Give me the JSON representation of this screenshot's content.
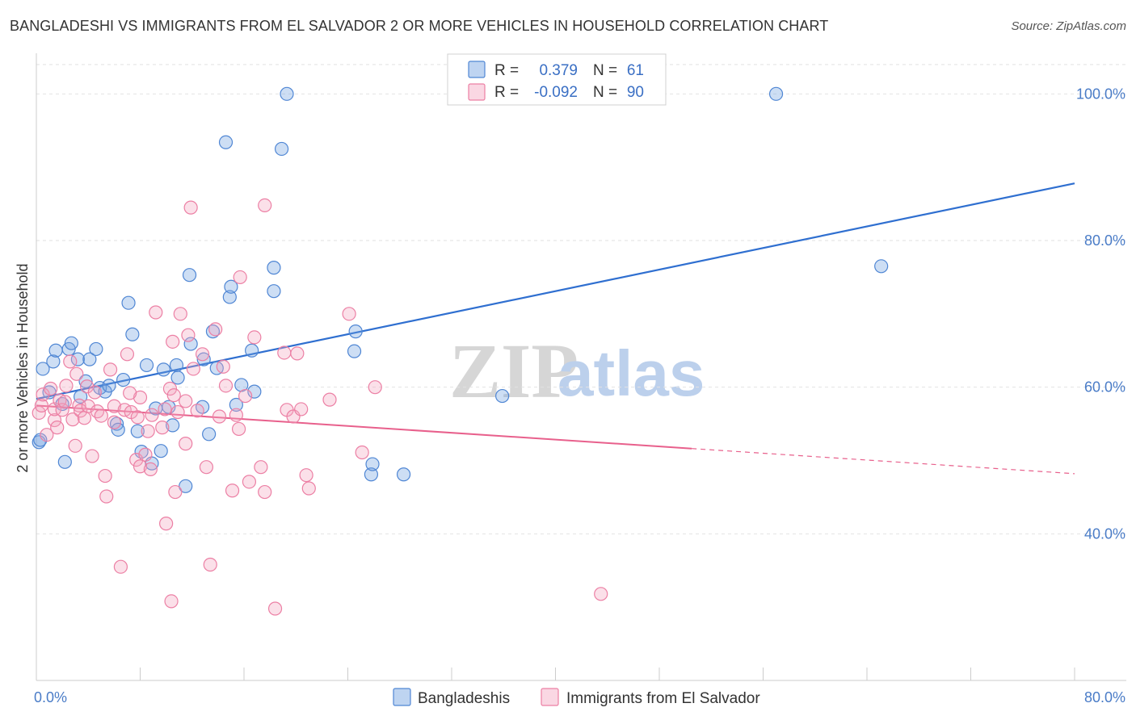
{
  "header": {
    "title": "BANGLADESHI VS IMMIGRANTS FROM EL SALVADOR 2 OR MORE VEHICLES IN HOUSEHOLD CORRELATION CHART",
    "source": "Source: ZipAtlas.com"
  },
  "watermark": {
    "zip": "ZIP",
    "atlas": "atlas"
  },
  "legend": {
    "r_label": "R =",
    "n_label": "N =",
    "entries": [
      {
        "r": "0.379",
        "n": "61",
        "color": "#6fa0e0"
      },
      {
        "r": "-0.092",
        "n": "90",
        "color": "#ef8fb0"
      }
    ]
  },
  "chart_data": {
    "type": "scatter",
    "xlabel": "",
    "ylabel": "2 or more Vehicles in Household",
    "xlim": [
      0,
      80
    ],
    "ylim": [
      20,
      104
    ],
    "x_tick_labels": [
      {
        "value": 0,
        "label": "0.0%"
      },
      {
        "value": 80,
        "label": "80.0%"
      }
    ],
    "y_tick_labels": [
      {
        "value": 40,
        "label": "40.0%"
      },
      {
        "value": 60,
        "label": "60.0%"
      },
      {
        "value": 80,
        "label": "80.0%"
      },
      {
        "value": 100,
        "label": "100.0%"
      }
    ],
    "x_minor_ticks": [
      0,
      8,
      16,
      24,
      32,
      40,
      48,
      56,
      64,
      72,
      80
    ],
    "grid": true,
    "legend_placement": "top-center and bottom",
    "series": [
      {
        "name": "Bangladeshis",
        "color": "#6fa0e0",
        "stroke": "#4f86d4",
        "trend": {
          "x0": 0,
          "y0": 58.4,
          "x1": 80,
          "y1": 87.8,
          "color": "#2f6fd0",
          "dashed_from": null
        },
        "points": [
          [
            0.2,
            52.5
          ],
          [
            0.5,
            62.5
          ],
          [
            1.0,
            59.3
          ],
          [
            1.3,
            63.5
          ],
          [
            1.5,
            65.0
          ],
          [
            2.0,
            57.7
          ],
          [
            2.2,
            49.8
          ],
          [
            2.5,
            65.2
          ],
          [
            2.7,
            66.0
          ],
          [
            3.2,
            63.8
          ],
          [
            3.4,
            58.7
          ],
          [
            3.8,
            60.8
          ],
          [
            4.1,
            63.8
          ],
          [
            4.6,
            65.2
          ],
          [
            4.9,
            59.9
          ],
          [
            5.3,
            59.4
          ],
          [
            5.6,
            60.2
          ],
          [
            6.2,
            55.0
          ],
          [
            6.3,
            54.2
          ],
          [
            6.7,
            61.0
          ],
          [
            7.1,
            71.5
          ],
          [
            7.4,
            67.2
          ],
          [
            7.8,
            54.0
          ],
          [
            8.1,
            51.2
          ],
          [
            8.5,
            63.0
          ],
          [
            8.9,
            49.6
          ],
          [
            9.2,
            57.1
          ],
          [
            9.6,
            51.3
          ],
          [
            9.8,
            62.4
          ],
          [
            10.2,
            57.3
          ],
          [
            10.5,
            54.8
          ],
          [
            10.8,
            63.0
          ],
          [
            10.9,
            61.3
          ],
          [
            11.5,
            46.5
          ],
          [
            11.9,
            65.9
          ],
          [
            11.8,
            75.3
          ],
          [
            12.8,
            57.3
          ],
          [
            12.9,
            63.8
          ],
          [
            13.3,
            53.6
          ],
          [
            13.6,
            67.6
          ],
          [
            13.9,
            62.6
          ],
          [
            14.6,
            93.4
          ],
          [
            14.9,
            72.3
          ],
          [
            15.0,
            73.7
          ],
          [
            15.4,
            57.6
          ],
          [
            15.8,
            60.3
          ],
          [
            16.6,
            65.0
          ],
          [
            16.8,
            59.4
          ],
          [
            18.3,
            76.3
          ],
          [
            18.3,
            73.1
          ],
          [
            18.9,
            92.5
          ],
          [
            19.3,
            100.0
          ],
          [
            24.5,
            64.9
          ],
          [
            24.6,
            67.6
          ],
          [
            25.8,
            48.1
          ],
          [
            25.9,
            49.5
          ],
          [
            28.3,
            48.1
          ],
          [
            35.9,
            58.8
          ],
          [
            57.0,
            100.0
          ],
          [
            65.1,
            76.5
          ],
          [
            0.3,
            52.8
          ]
        ]
      },
      {
        "name": "Immigrants from El Salvador",
        "color": "#f4a6c1",
        "stroke": "#ec7fa4",
        "trend": {
          "x0": 0,
          "y0": 57.5,
          "x1": 80,
          "y1": 48.2,
          "color": "#e8608c",
          "dashed_from": 50.5
        },
        "points": [
          [
            0.2,
            56.5
          ],
          [
            0.4,
            57.5
          ],
          [
            0.5,
            59.0
          ],
          [
            0.8,
            53.5
          ],
          [
            1.1,
            59.8
          ],
          [
            1.4,
            55.5
          ],
          [
            1.4,
            57.0
          ],
          [
            1.6,
            54.5
          ],
          [
            1.8,
            58.2
          ],
          [
            2.0,
            56.9
          ],
          [
            2.2,
            58.0
          ],
          [
            2.3,
            60.2
          ],
          [
            2.6,
            63.5
          ],
          [
            2.8,
            55.6
          ],
          [
            3.0,
            52.0
          ],
          [
            3.1,
            61.8
          ],
          [
            3.3,
            57.5
          ],
          [
            3.4,
            56.8
          ],
          [
            3.7,
            55.8
          ],
          [
            3.9,
            60.1
          ],
          [
            4.0,
            57.4
          ],
          [
            4.3,
            50.6
          ],
          [
            4.5,
            59.3
          ],
          [
            4.7,
            56.7
          ],
          [
            5.0,
            56.1
          ],
          [
            5.3,
            47.9
          ],
          [
            5.4,
            45.1
          ],
          [
            5.7,
            62.4
          ],
          [
            6.0,
            57.4
          ],
          [
            6.5,
            35.5
          ],
          [
            6.8,
            56.9
          ],
          [
            7.0,
            64.5
          ],
          [
            7.3,
            56.6
          ],
          [
            7.7,
            50.1
          ],
          [
            7.8,
            55.9
          ],
          [
            8.0,
            58.6
          ],
          [
            8.4,
            50.8
          ],
          [
            8.6,
            54.0
          ],
          [
            8.9,
            56.2
          ],
          [
            9.2,
            70.2
          ],
          [
            9.7,
            54.5
          ],
          [
            9.9,
            57.0
          ],
          [
            10.0,
            41.4
          ],
          [
            10.3,
            59.8
          ],
          [
            10.5,
            66.2
          ],
          [
            10.6,
            58.9
          ],
          [
            10.7,
            45.7
          ],
          [
            10.9,
            56.6
          ],
          [
            11.1,
            70.0
          ],
          [
            11.5,
            58.1
          ],
          [
            11.7,
            67.1
          ],
          [
            11.9,
            84.5
          ],
          [
            12.1,
            62.5
          ],
          [
            12.4,
            56.8
          ],
          [
            12.8,
            64.5
          ],
          [
            13.1,
            49.1
          ],
          [
            13.4,
            35.8
          ],
          [
            13.8,
            67.9
          ],
          [
            14.1,
            56.0
          ],
          [
            14.4,
            62.8
          ],
          [
            14.6,
            60.2
          ],
          [
            15.1,
            45.9
          ],
          [
            15.4,
            56.2
          ],
          [
            15.6,
            54.3
          ],
          [
            15.7,
            75.0
          ],
          [
            16.1,
            58.8
          ],
          [
            16.4,
            47.1
          ],
          [
            16.8,
            66.8
          ],
          [
            17.3,
            49.1
          ],
          [
            17.6,
            45.7
          ],
          [
            18.4,
            29.8
          ],
          [
            19.1,
            64.7
          ],
          [
            19.3,
            56.9
          ],
          [
            19.8,
            56.0
          ],
          [
            20.1,
            64.6
          ],
          [
            20.4,
            57.0
          ],
          [
            20.8,
            48.0
          ],
          [
            21.0,
            46.2
          ],
          [
            22.6,
            58.3
          ],
          [
            24.1,
            70.0
          ],
          [
            25.1,
            51.1
          ],
          [
            26.1,
            60.0
          ],
          [
            43.5,
            31.8
          ],
          [
            10.4,
            30.8
          ],
          [
            8.0,
            49.2
          ],
          [
            7.2,
            59.2
          ],
          [
            8.8,
            48.8
          ],
          [
            6.0,
            55.2
          ],
          [
            11.5,
            52.3
          ],
          [
            17.6,
            84.8
          ]
        ]
      }
    ]
  }
}
